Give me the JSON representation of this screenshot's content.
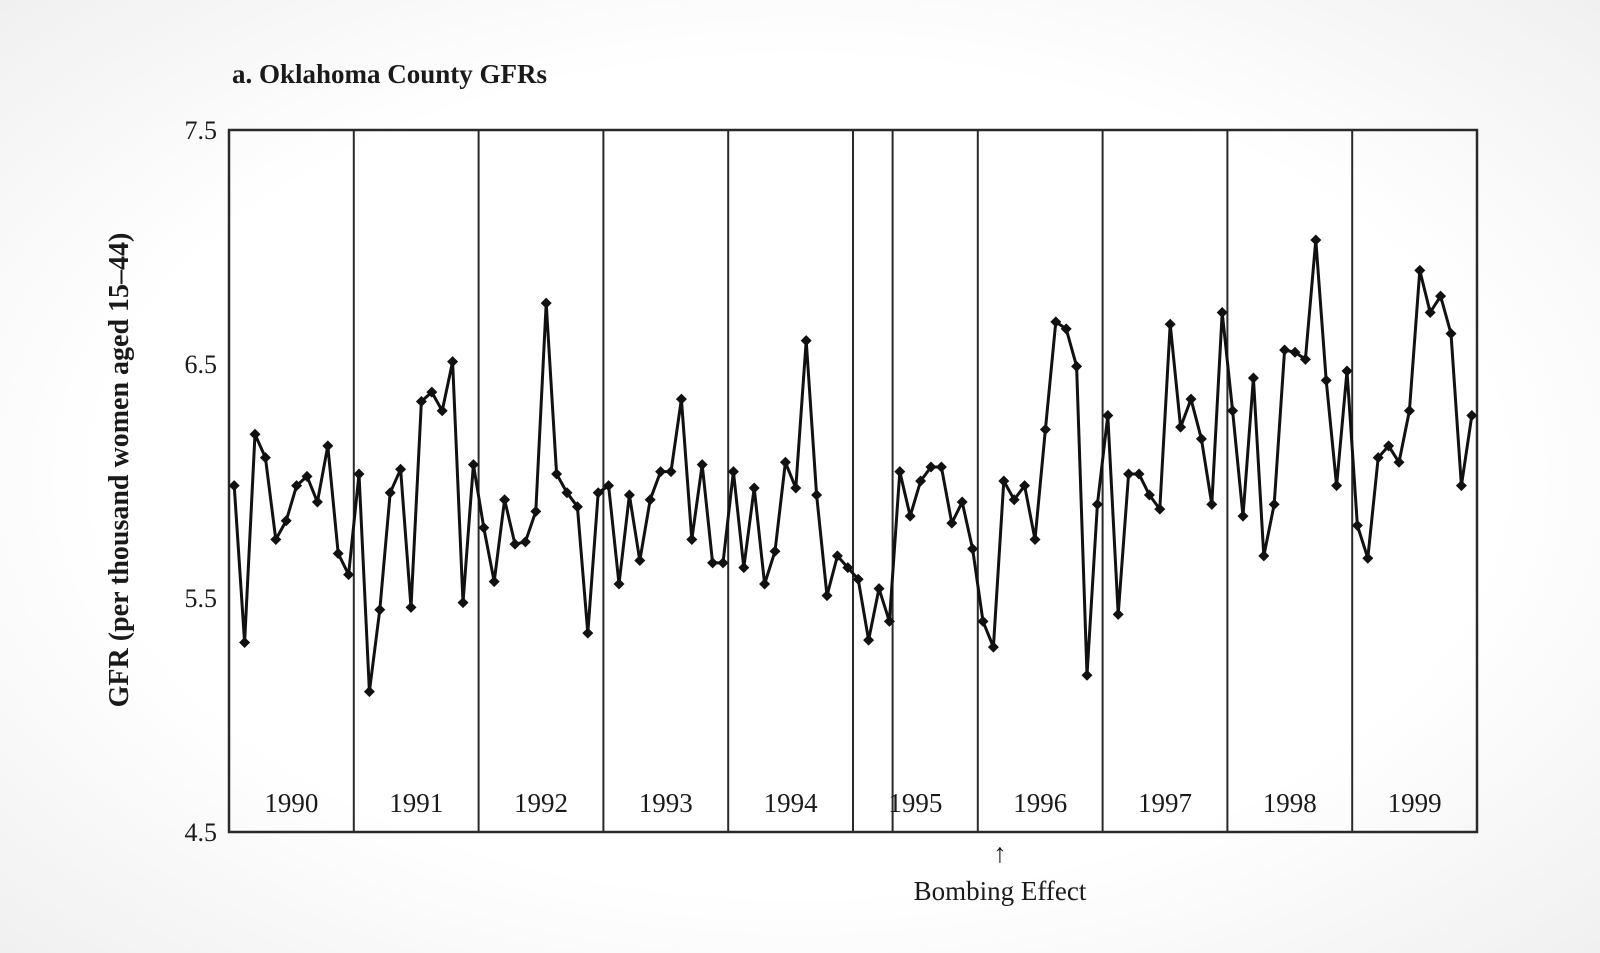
{
  "chart_data": {
    "type": "line",
    "title": "a. Oklahoma County GFRs",
    "ylabel": "GFR (per thousand women aged 15–44)",
    "ylim": [
      4.5,
      7.5
    ],
    "yticks": [
      "4.5",
      "5.5",
      "6.5",
      "7.5"
    ],
    "grid": false,
    "years": [
      "1990",
      "1991",
      "1992",
      "1993",
      "1994",
      "1995",
      "1996",
      "1997",
      "1998",
      "1999"
    ],
    "annotation": {
      "text": "Bombing Effect",
      "arrow": "↑",
      "date": "1996-01"
    },
    "series": [
      {
        "values": [
          5.98,
          5.31,
          6.2,
          6.1,
          5.75,
          5.83,
          5.98,
          6.02,
          5.91,
          6.15,
          5.69,
          5.6,
          6.03,
          5.1,
          5.45,
          5.95,
          6.05,
          5.46,
          6.34,
          6.38,
          6.3,
          6.51,
          5.48,
          6.07,
          5.8,
          5.57,
          5.92,
          5.73,
          5.74,
          5.87,
          6.76,
          6.03,
          5.95,
          5.89,
          5.35,
          5.95,
          5.98,
          5.56,
          5.94,
          5.66,
          5.92,
          6.04,
          6.04,
          6.35,
          5.75,
          6.07,
          5.65,
          5.65,
          6.04,
          5.63,
          5.97,
          5.56,
          5.7,
          6.08,
          5.97,
          6.6,
          5.94,
          5.51,
          5.68,
          5.63,
          5.58,
          5.32,
          5.54,
          5.4,
          6.04,
          5.85,
          6.0,
          6.06,
          6.06,
          5.82,
          5.91,
          5.71,
          5.4,
          5.29,
          6.0,
          5.92,
          5.98,
          5.75,
          6.22,
          6.68,
          6.65,
          6.49,
          5.17,
          5.9,
          6.28,
          5.43,
          6.03,
          6.03,
          5.94,
          5.88,
          6.67,
          6.23,
          6.35,
          6.18,
          5.9,
          6.72,
          6.3,
          5.85,
          6.44,
          5.68,
          5.9,
          6.56,
          6.55,
          6.52,
          7.03,
          6.43,
          5.98,
          6.47,
          5.81,
          5.67,
          6.1,
          6.15,
          6.08,
          6.3,
          6.9,
          6.72,
          6.79,
          6.63,
          5.98,
          6.28
        ]
      }
    ]
  }
}
